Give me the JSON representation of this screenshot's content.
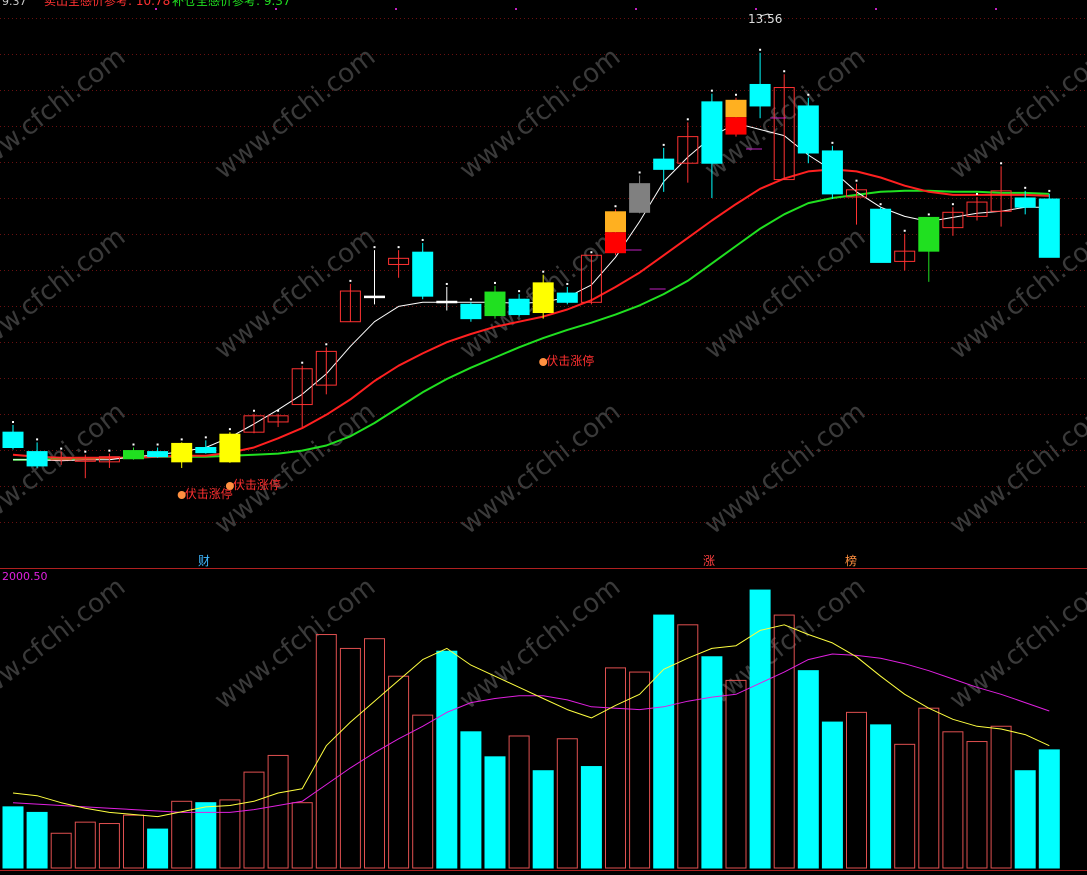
{
  "header": {
    "left_value": "9.37",
    "sell_label": "卖出全感价参考: 10.78",
    "buy_label": "补仓全感价参考: 9.37"
  },
  "markers": {
    "high_label": "13.56",
    "signal_label": "伏击涨停",
    "events": [
      "财",
      "涨",
      "榜"
    ]
  },
  "volume_label": "2000.50",
  "watermark": "www.cfchi.com",
  "colors": {
    "up": "#ff3232",
    "down": "#00ffff",
    "signal": "#ffff00",
    "ma_short": "#ffffff",
    "ma_mid": "#ff2020",
    "ma_long": "#20e020",
    "vol_ma_short": "#ffff40",
    "vol_ma_long": "#e020e0"
  },
  "chart_data": [
    {
      "type": "candlestick",
      "ylim": [
        8.6,
        13.9
      ],
      "candles": [
        {
          "o": 9.85,
          "h": 9.92,
          "l": 9.68,
          "c": 9.7,
          "s": "down"
        },
        {
          "o": 9.66,
          "h": 9.75,
          "l": 9.5,
          "c": 9.52,
          "s": "down"
        },
        {
          "o": 9.6,
          "h": 9.66,
          "l": 9.53,
          "c": 9.58,
          "s": "up"
        },
        {
          "o": 9.58,
          "h": 9.63,
          "l": 9.4,
          "c": 9.58,
          "s": "up"
        },
        {
          "o": 9.56,
          "h": 9.64,
          "l": 9.5,
          "c": 9.61,
          "s": "up"
        },
        {
          "o": 9.67,
          "h": 9.7,
          "l": 9.58,
          "c": 9.59,
          "s": "green"
        },
        {
          "o": 9.66,
          "h": 9.7,
          "l": 9.6,
          "c": 9.61,
          "s": "down"
        },
        {
          "o": 9.56,
          "h": 9.75,
          "l": 9.5,
          "c": 9.74,
          "s": "yellow"
        },
        {
          "o": 9.7,
          "h": 9.77,
          "l": 9.64,
          "c": 9.65,
          "s": "down"
        },
        {
          "o": 9.56,
          "h": 9.85,
          "l": 9.55,
          "c": 9.83,
          "s": "yellow"
        },
        {
          "o": 9.85,
          "h": 10.03,
          "l": 9.84,
          "c": 10.01,
          "s": "up"
        },
        {
          "o": 9.95,
          "h": 10.03,
          "l": 9.9,
          "c": 10.01,
          "s": "up"
        },
        {
          "o": 10.12,
          "h": 10.5,
          "l": 9.9,
          "c": 10.47,
          "s": "up"
        },
        {
          "o": 10.31,
          "h": 10.68,
          "l": 10.22,
          "c": 10.64,
          "s": "up"
        },
        {
          "o": 10.93,
          "h": 11.3,
          "l": 10.93,
          "c": 11.23,
          "s": "up"
        },
        {
          "o": 11.18,
          "h": 11.63,
          "l": 11.1,
          "c": 11.18,
          "s": "flat"
        },
        {
          "o": 11.49,
          "h": 11.63,
          "l": 11.36,
          "c": 11.55,
          "s": "up"
        },
        {
          "o": 11.61,
          "h": 11.7,
          "l": 11.15,
          "c": 11.18,
          "s": "down"
        },
        {
          "o": 11.13,
          "h": 11.27,
          "l": 11.04,
          "c": 11.12,
          "s": "flat"
        },
        {
          "o": 11.1,
          "h": 11.12,
          "l": 10.93,
          "c": 10.96,
          "s": "down"
        },
        {
          "o": 11.22,
          "h": 11.28,
          "l": 10.96,
          "c": 10.99,
          "s": "green"
        },
        {
          "o": 11.15,
          "h": 11.2,
          "l": 10.98,
          "c": 11.0,
          "s": "down"
        },
        {
          "o": 11.31,
          "h": 11.39,
          "l": 10.96,
          "c": 11.02,
          "s": "yellow"
        },
        {
          "o": 11.21,
          "h": 11.27,
          "l": 11.1,
          "c": 11.12,
          "s": "down"
        },
        {
          "o": 11.12,
          "h": 11.58,
          "l": 11.1,
          "c": 11.58,
          "s": "up"
        },
        {
          "o": 11.6,
          "h": 12.03,
          "l": 11.58,
          "c": 12.01,
          "s": "redyellow"
        },
        {
          "o": 12.28,
          "h": 12.36,
          "l": 11.99,
          "c": 12.0,
          "s": "gray"
        },
        {
          "o": 12.42,
          "h": 12.63,
          "l": 12.2,
          "c": 12.52,
          "s": "down"
        },
        {
          "o": 12.48,
          "h": 12.88,
          "l": 12.29,
          "c": 12.74,
          "s": "up"
        },
        {
          "o": 13.08,
          "h": 13.16,
          "l": 12.14,
          "c": 12.48,
          "s": "down"
        },
        {
          "o": 12.76,
          "h": 13.12,
          "l": 12.74,
          "c": 13.1,
          "s": "redyellow"
        },
        {
          "o": 13.25,
          "h": 13.56,
          "l": 12.92,
          "c": 13.04,
          "s": "down"
        },
        {
          "o": 13.22,
          "h": 13.35,
          "l": 12.32,
          "c": 12.32,
          "s": "up"
        },
        {
          "o": 13.04,
          "h": 13.12,
          "l": 12.48,
          "c": 12.58,
          "s": "down"
        },
        {
          "o": 12.6,
          "h": 12.65,
          "l": 12.13,
          "c": 12.18,
          "s": "down"
        },
        {
          "o": 12.22,
          "h": 12.28,
          "l": 11.88,
          "c": 12.15,
          "s": "up"
        },
        {
          "o": 12.03,
          "h": 12.05,
          "l": 11.51,
          "c": 11.51,
          "s": "down"
        },
        {
          "o": 11.52,
          "h": 11.79,
          "l": 11.43,
          "c": 11.62,
          "s": "up"
        },
        {
          "o": 11.95,
          "h": 11.95,
          "l": 11.32,
          "c": 11.62,
          "s": "green"
        },
        {
          "o": 11.85,
          "h": 12.05,
          "l": 11.77,
          "c": 12.0,
          "s": "up"
        },
        {
          "o": 11.96,
          "h": 12.15,
          "l": 11.92,
          "c": 12.1,
          "s": "up"
        },
        {
          "o": 12.01,
          "h": 12.45,
          "l": 11.86,
          "c": 12.21,
          "s": "up"
        },
        {
          "o": 12.14,
          "h": 12.21,
          "l": 11.98,
          "c": 12.05,
          "s": "down"
        },
        {
          "o": 12.13,
          "h": 12.18,
          "l": 11.56,
          "c": 11.56,
          "s": "down"
        }
      ],
      "ma_short": [
        9.58,
        9.58,
        9.57,
        9.58,
        9.58,
        9.61,
        9.63,
        9.66,
        9.7,
        9.8,
        9.93,
        10.07,
        10.22,
        10.42,
        10.69,
        10.93,
        11.08,
        11.12,
        11.12,
        11.12,
        11.12,
        11.11,
        11.12,
        11.17,
        11.29,
        11.56,
        11.91,
        12.3,
        12.54,
        12.74,
        12.87,
        12.81,
        12.75,
        12.56,
        12.41,
        12.2,
        12.05,
        11.96,
        11.91,
        11.95,
        11.99,
        12.01,
        12.05,
        12.05
      ],
      "ma_mid": [
        9.63,
        9.61,
        9.6,
        9.6,
        9.6,
        9.6,
        9.61,
        9.62,
        9.62,
        9.65,
        9.7,
        9.79,
        9.89,
        10.02,
        10.17,
        10.35,
        10.5,
        10.62,
        10.73,
        10.81,
        10.88,
        10.93,
        10.98,
        11.05,
        11.14,
        11.27,
        11.41,
        11.58,
        11.75,
        11.92,
        12.08,
        12.23,
        12.33,
        12.4,
        12.42,
        12.4,
        12.34,
        12.26,
        12.2,
        12.17,
        12.17,
        12.17,
        12.17,
        12.16
      ],
      "ma_long": [
        9.58,
        9.58,
        9.59,
        9.59,
        9.6,
        9.6,
        9.61,
        9.61,
        9.61,
        9.62,
        9.63,
        9.64,
        9.67,
        9.72,
        9.81,
        9.94,
        10.09,
        10.24,
        10.37,
        10.48,
        10.58,
        10.68,
        10.77,
        10.85,
        10.92,
        11.0,
        11.09,
        11.2,
        11.33,
        11.5,
        11.67,
        11.84,
        11.98,
        12.09,
        12.14,
        12.17,
        12.2,
        12.21,
        12.21,
        12.2,
        12.2,
        12.19,
        12.19,
        12.18
      ]
    },
    {
      "type": "bar",
      "ylim": [
        0,
        2000.5
      ],
      "values": [
        440,
        400,
        250,
        330,
        320,
        380,
        280,
        480,
        470,
        490,
        690,
        810,
        470,
        1680,
        1580,
        1650,
        1380,
        1100,
        1560,
        980,
        800,
        950,
        700,
        930,
        730,
        1440,
        1410,
        1820,
        1750,
        1520,
        1350,
        2000,
        1820,
        1420,
        1050,
        1120,
        1030,
        890,
        1150,
        980,
        910,
        1020,
        700,
        850
      ],
      "styles": [
        "cyan",
        "cyan",
        "red",
        "red",
        "red",
        "red",
        "cyan",
        "red",
        "cyan",
        "red",
        "red",
        "red",
        "red",
        "red",
        "red",
        "red",
        "red",
        "red",
        "cyan",
        "cyan",
        "cyan",
        "red",
        "cyan",
        "red",
        "cyan",
        "red",
        "red",
        "cyan",
        "red",
        "cyan",
        "red",
        "cyan",
        "red",
        "cyan",
        "cyan",
        "red",
        "cyan",
        "red",
        "red",
        "red",
        "red",
        "red",
        "cyan",
        "cyan"
      ],
      "ma_short": [
        540,
        520,
        470,
        430,
        400,
        385,
        370,
        405,
        440,
        450,
        480,
        540,
        570,
        880,
        1050,
        1200,
        1350,
        1500,
        1580,
        1460,
        1380,
        1300,
        1220,
        1140,
        1080,
        1170,
        1250,
        1430,
        1510,
        1580,
        1600,
        1710,
        1750,
        1680,
        1620,
        1520,
        1380,
        1250,
        1150,
        1070,
        1020,
        1000,
        960,
        880
      ],
      "ma_long": [
        470,
        460,
        450,
        440,
        430,
        420,
        410,
        400,
        400,
        400,
        420,
        450,
        480,
        600,
        720,
        830,
        930,
        1020,
        1120,
        1190,
        1220,
        1240,
        1240,
        1210,
        1160,
        1150,
        1140,
        1160,
        1200,
        1230,
        1250,
        1330,
        1410,
        1500,
        1540,
        1530,
        1510,
        1470,
        1420,
        1360,
        1300,
        1250,
        1190,
        1130
      ]
    }
  ]
}
